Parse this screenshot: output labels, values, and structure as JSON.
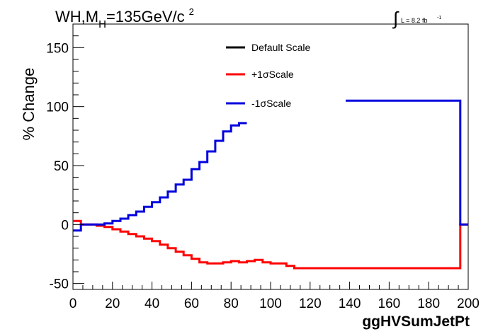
{
  "chart_data": {
    "type": "line",
    "title": {
      "main": "WH,M",
      "sub": "H",
      "rest": "=135GeV/c",
      "sup": "2"
    },
    "lumi": {
      "integral": "∫",
      "text": "L = 8.2 fb",
      "sup": "-1"
    },
    "xlabel": "ggHVSumJetPt",
    "ylabel": "% Change",
    "xlim": [
      0,
      200
    ],
    "ylim": [
      -55,
      170
    ],
    "x_ticks": [
      0,
      20,
      40,
      60,
      80,
      100,
      120,
      140,
      160,
      180,
      200
    ],
    "y_ticks": [
      -50,
      0,
      50,
      100,
      150
    ],
    "x_tick_labels": [
      "0",
      "20",
      "40",
      "60",
      "80",
      "100",
      "120",
      "140",
      "160",
      "180",
      "200"
    ],
    "y_tick_labels": [
      "-50",
      "0",
      "50",
      "100",
      "150"
    ],
    "series": [
      {
        "name": "Default Scale",
        "color": "#000000",
        "segments": []
      },
      {
        "name": "+1σScale",
        "color": "#ff0000",
        "segments": [
          {
            "edges": [
              0,
              4,
              8,
              12,
              16,
              20,
              24,
              28,
              32,
              36,
              40,
              44,
              48,
              52,
              56,
              60,
              64,
              68,
              72,
              76,
              80,
              84,
              88,
              92,
              96,
              100,
              104,
              108,
              112,
              196,
              200
            ],
            "values": [
              3,
              0,
              0,
              -1,
              -2,
              -4,
              -6,
              -8,
              -10,
              -12,
              -14,
              -17,
              -20,
              -23,
              -26,
              -29,
              -32,
              -33,
              -33,
              -32,
              -31,
              -32,
              -31,
              -30,
              -32,
              -33,
              -33,
              -35,
              -37,
              0
            ]
          }
        ]
      },
      {
        "name": "-1σScale",
        "color": "#0000dd",
        "segments": [
          {
            "edges": [
              0,
              4,
              8,
              12,
              16,
              20,
              24,
              28,
              32,
              36,
              40,
              44,
              48,
              52,
              56,
              60,
              64,
              68,
              72,
              76,
              80,
              84,
              88
            ],
            "values": [
              -5,
              0,
              0,
              0,
              1,
              3,
              5,
              8,
              11,
              15,
              19,
              23,
              28,
              34,
              38,
              47,
              53,
              62,
              71,
              79,
              84,
              86
            ]
          },
          {
            "edges": [
              138,
              196,
              200
            ],
            "values": [
              105,
              0
            ]
          }
        ]
      }
    ],
    "legend_placement": "top-center"
  }
}
